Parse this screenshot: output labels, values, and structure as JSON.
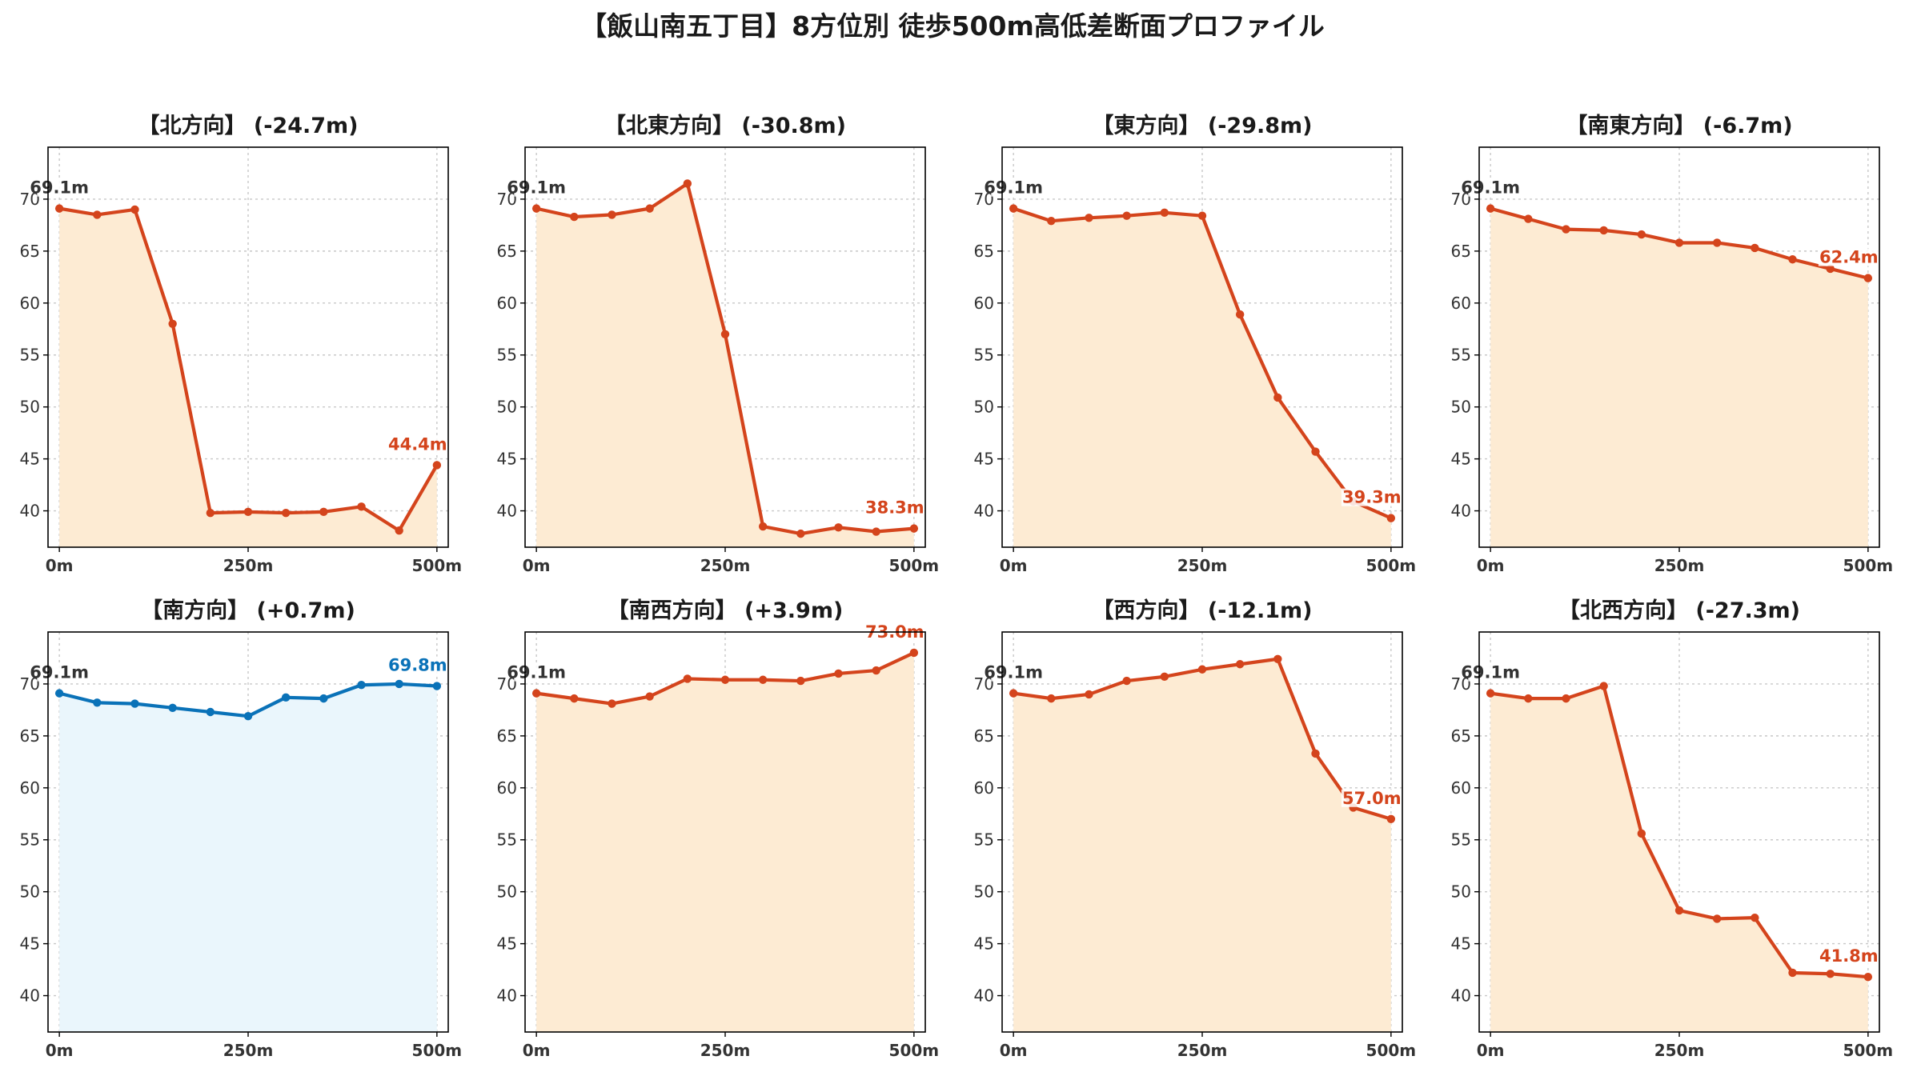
{
  "suptitle": "【飯山南五丁目】8方位別 徒歩500m高低差断面プロファイル",
  "chart_data": [
    {
      "type": "area",
      "title": "【北方向】 (-24.7m)",
      "x": [
        0,
        50,
        100,
        150,
        200,
        250,
        300,
        350,
        400,
        450,
        500
      ],
      "xticks": [
        "0m",
        "250m",
        "500m"
      ],
      "y": [
        69.1,
        68.5,
        69.0,
        58.0,
        39.8,
        39.9,
        39.8,
        39.9,
        40.4,
        38.1,
        44.4
      ],
      "start_label": "69.1m",
      "end_label": "44.4m",
      "yticks": [
        40,
        45,
        50,
        55,
        60,
        65,
        70
      ],
      "ylim": [
        36.5,
        75
      ],
      "xlim": [
        -15,
        515
      ],
      "grid": true,
      "line_color": "#d4441c",
      "fill_color": "#fdebd3"
    },
    {
      "type": "area",
      "title": "【北東方向】 (-30.8m)",
      "x": [
        0,
        50,
        100,
        150,
        200,
        250,
        300,
        350,
        400,
        450,
        500
      ],
      "xticks": [
        "0m",
        "250m",
        "500m"
      ],
      "y": [
        69.1,
        68.3,
        68.5,
        69.1,
        71.5,
        57.0,
        38.5,
        37.8,
        38.4,
        38.0,
        38.3
      ],
      "start_label": "69.1m",
      "end_label": "38.3m",
      "yticks": [
        40,
        45,
        50,
        55,
        60,
        65,
        70
      ],
      "ylim": [
        36.5,
        75
      ],
      "xlim": [
        -15,
        515
      ],
      "grid": true,
      "line_color": "#d4441c",
      "fill_color": "#fdebd3"
    },
    {
      "type": "area",
      "title": "【東方向】 (-29.8m)",
      "x": [
        0,
        50,
        100,
        150,
        200,
        250,
        300,
        350,
        400,
        450,
        500
      ],
      "xticks": [
        "0m",
        "250m",
        "500m"
      ],
      "y": [
        69.1,
        67.9,
        68.2,
        68.4,
        68.7,
        68.4,
        58.9,
        50.9,
        45.7,
        40.9,
        39.3
      ],
      "start_label": "69.1m",
      "end_label": "39.3m",
      "yticks": [
        40,
        45,
        50,
        55,
        60,
        65,
        70
      ],
      "ylim": [
        36.5,
        75
      ],
      "xlim": [
        -15,
        515
      ],
      "grid": true,
      "line_color": "#d4441c",
      "fill_color": "#fdebd3"
    },
    {
      "type": "area",
      "title": "【南東方向】 (-6.7m)",
      "x": [
        0,
        50,
        100,
        150,
        200,
        250,
        300,
        350,
        400,
        450,
        500
      ],
      "xticks": [
        "0m",
        "250m",
        "500m"
      ],
      "y": [
        69.1,
        68.1,
        67.1,
        67.0,
        66.6,
        65.8,
        65.8,
        65.3,
        64.2,
        63.3,
        62.4
      ],
      "start_label": "69.1m",
      "end_label": "62.4m",
      "yticks": [
        40,
        45,
        50,
        55,
        60,
        65,
        70
      ],
      "ylim": [
        36.5,
        75
      ],
      "xlim": [
        -15,
        515
      ],
      "grid": true,
      "line_color": "#d4441c",
      "fill_color": "#fdebd3"
    },
    {
      "type": "area",
      "title": "【南方向】 (+0.7m)",
      "x": [
        0,
        50,
        100,
        150,
        200,
        250,
        300,
        350,
        400,
        450,
        500
      ],
      "xticks": [
        "0m",
        "250m",
        "500m"
      ],
      "y": [
        69.1,
        68.2,
        68.1,
        67.7,
        67.3,
        66.9,
        68.7,
        68.6,
        69.9,
        70.0,
        69.8
      ],
      "start_label": "69.1m",
      "end_label": "69.8m",
      "yticks": [
        40,
        45,
        50,
        55,
        60,
        65,
        70
      ],
      "ylim": [
        36.5,
        75
      ],
      "xlim": [
        -15,
        515
      ],
      "grid": true,
      "line_color": "#0a72b8",
      "fill_color": "#eaf6fc"
    },
    {
      "type": "area",
      "title": "【南西方向】 (+3.9m)",
      "x": [
        0,
        50,
        100,
        150,
        200,
        250,
        300,
        350,
        400,
        450,
        500
      ],
      "xticks": [
        "0m",
        "250m",
        "500m"
      ],
      "y": [
        69.1,
        68.6,
        68.1,
        68.8,
        70.5,
        70.4,
        70.4,
        70.3,
        71.0,
        71.3,
        73.0
      ],
      "start_label": "69.1m",
      "end_label": "73.0m",
      "yticks": [
        40,
        45,
        50,
        55,
        60,
        65,
        70
      ],
      "ylim": [
        36.5,
        75
      ],
      "xlim": [
        -15,
        515
      ],
      "grid": true,
      "line_color": "#d4441c",
      "fill_color": "#fdebd3"
    },
    {
      "type": "area",
      "title": "【西方向】 (-12.1m)",
      "x": [
        0,
        50,
        100,
        150,
        200,
        250,
        300,
        350,
        400,
        450,
        500
      ],
      "xticks": [
        "0m",
        "250m",
        "500m"
      ],
      "y": [
        69.1,
        68.6,
        69.0,
        70.3,
        70.7,
        71.4,
        71.9,
        72.4,
        63.3,
        58.1,
        57.0
      ],
      "start_label": "69.1m",
      "end_label": "57.0m",
      "yticks": [
        40,
        45,
        50,
        55,
        60,
        65,
        70
      ],
      "ylim": [
        36.5,
        75
      ],
      "xlim": [
        -15,
        515
      ],
      "grid": true,
      "line_color": "#d4441c",
      "fill_color": "#fdebd3"
    },
    {
      "type": "area",
      "title": "【北西方向】 (-27.3m)",
      "x": [
        0,
        50,
        100,
        150,
        200,
        250,
        300,
        350,
        400,
        450,
        500
      ],
      "xticks": [
        "0m",
        "250m",
        "500m"
      ],
      "y": [
        69.1,
        68.6,
        68.6,
        69.8,
        55.6,
        48.2,
        47.4,
        47.5,
        42.2,
        42.1,
        41.8
      ],
      "start_label": "69.1m",
      "end_label": "41.8m",
      "yticks": [
        40,
        45,
        50,
        55,
        60,
        65,
        70
      ],
      "ylim": [
        36.5,
        75
      ],
      "xlim": [
        -15,
        515
      ],
      "grid": true,
      "line_color": "#d4441c",
      "fill_color": "#fdebd3"
    }
  ]
}
